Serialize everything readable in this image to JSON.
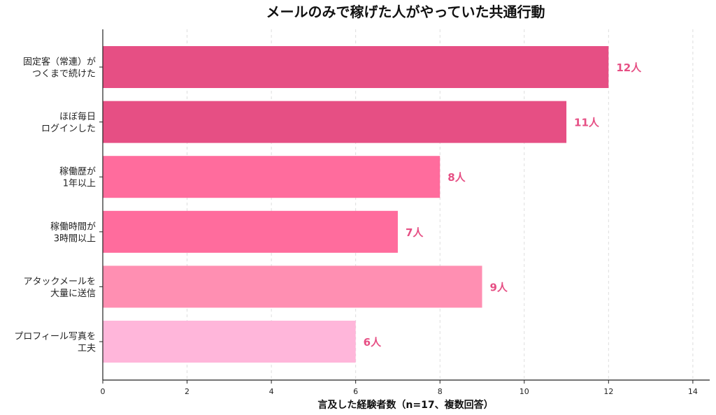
{
  "chart_data": {
    "type": "bar",
    "orientation": "horizontal",
    "title": "メールのみで稼げた人がやっていた共通行動",
    "xlabel": "言及した経験者数（n=17、複数回答）",
    "ylabel": "",
    "xlim": [
      0,
      14.4
    ],
    "xticks": [
      0,
      2,
      4,
      6,
      8,
      10,
      12,
      14
    ],
    "grid": true,
    "legend": "none",
    "categories": [
      [
        "固定客（常連）が",
        "つくまで続けた"
      ],
      [
        "ほぼ毎日",
        "ログインした"
      ],
      [
        "稼働歴が",
        "1年以上"
      ],
      [
        "稼働時間が",
        "3時間以上"
      ],
      [
        "アタックメールを",
        "大量に送信"
      ],
      [
        "プロフィール写真を",
        "工夫"
      ]
    ],
    "values": [
      12,
      11,
      8,
      7,
      9,
      6
    ],
    "value_labels": [
      "12人",
      "11人",
      "8人",
      "7人",
      "9人",
      "6人"
    ],
    "bar_colors": [
      "#e64f84",
      "#e64f84",
      "#ff6c9d",
      "#ff6c9d",
      "#ff8fb2",
      "#ffb6da"
    ],
    "label_color": "#e64f84"
  }
}
